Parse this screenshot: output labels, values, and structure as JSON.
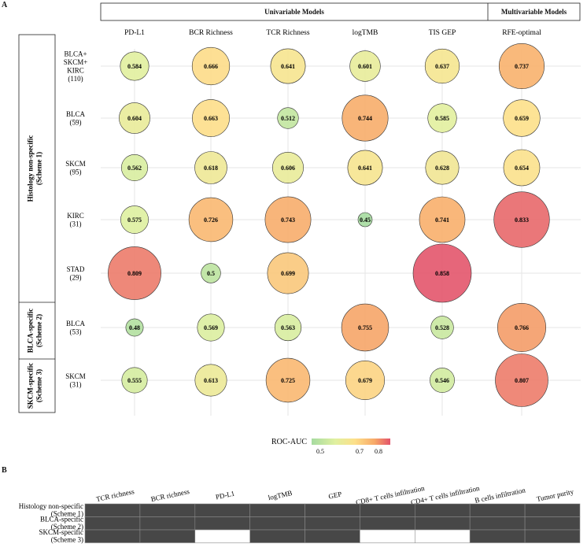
{
  "panel_a": {
    "letter": "A"
  },
  "panel_b": {
    "letter": "B"
  },
  "headers": {
    "univariable": "Univariable Models",
    "multivariable": "Multivariable Models"
  },
  "legend": {
    "title": "ROC-AUC",
    "ticks": [
      "0.5",
      "0.7",
      "0.8"
    ]
  },
  "colors": {
    "low": "#a6dba0",
    "mid_low": "#e0f0a0",
    "mid": "#fde08a",
    "mid_high": "#f7a968",
    "high": "#e3536b",
    "heat_filled": "#474747",
    "heat_empty": "#ffffff",
    "grid": "#e6e6e6"
  },
  "chart_data": [
    {
      "type": "scatter",
      "subtype": "bubble",
      "columns": [
        "PD-L1",
        "BCR Richness",
        "TCR Richness",
        "logTMB",
        "TIS GEP",
        "RFE-optimal"
      ],
      "rows": [
        {
          "label": [
            "BLCA+",
            "SKCM+",
            "KIRC",
            "(110)"
          ],
          "values": [
            0.584,
            0.666,
            0.641,
            0.601,
            0.637,
            0.737
          ]
        },
        {
          "label": [
            "BLCA",
            "(59)"
          ],
          "values": [
            0.604,
            0.663,
            0.512,
            0.744,
            0.585,
            0.659
          ]
        },
        {
          "label": [
            "SKCM",
            "(95)"
          ],
          "values": [
            0.562,
            0.618,
            0.606,
            0.641,
            0.628,
            0.654
          ]
        },
        {
          "label": [
            "KIRC",
            "(31)"
          ],
          "values": [
            0.575,
            0.726,
            0.743,
            0.45,
            0.741,
            0.833
          ]
        },
        {
          "label": [
            "STAD",
            "(29)"
          ],
          "values": [
            0.809,
            0.5,
            0.699,
            null,
            0.858,
            null
          ]
        },
        {
          "label": [
            "BLCA",
            "(53)"
          ],
          "values": [
            0.48,
            0.569,
            0.563,
            0.755,
            0.528,
            0.766
          ]
        },
        {
          "label": [
            "SKCM",
            "(31)"
          ],
          "values": [
            0.555,
            0.613,
            0.725,
            0.679,
            0.546,
            0.807
          ]
        }
      ],
      "row_groups": [
        {
          "label": [
            "Histology non-specific",
            "(Scheme 1)"
          ],
          "rows": [
            0,
            4
          ]
        },
        {
          "label": [
            "BLCA-specific",
            "(Scheme 2)"
          ],
          "rows": [
            5,
            5
          ]
        },
        {
          "label": [
            "SKCM-specific",
            "(Scheme 3)"
          ],
          "rows": [
            6,
            6
          ]
        }
      ],
      "column_groups": [
        {
          "label": "Univariable Models",
          "columns": [
            0,
            4
          ]
        },
        {
          "label": "Multivariable Models",
          "columns": [
            5,
            5
          ]
        }
      ],
      "color_scale": "ROC-AUC",
      "value_labels": [
        "0.584",
        "0.666",
        "0.641",
        "0.601",
        "0.637",
        "0.737",
        "0.604",
        "0.663",
        "0.512",
        "0.744",
        "0.585",
        "0.659",
        "0.562",
        "0.618",
        "0.606",
        "0.641",
        "0.628",
        "0.654",
        "0.575",
        "0.726",
        "0.743",
        "0.45",
        "0.741",
        "0.833",
        "0.809",
        "0.5",
        "0.699",
        "",
        "0.858",
        "",
        "0.48",
        "0.569",
        "0.563",
        "0.755",
        "0.528",
        "0.766",
        "0.555",
        "0.613",
        "0.725",
        "0.679",
        "0.546",
        "0.807"
      ]
    },
    {
      "type": "heatmap",
      "columns": [
        "TCR richness",
        "BCR richness",
        "PD-L1",
        "logTMB",
        "GEP",
        "CD8+ T cells infiltration",
        "CD4+ T cells infiltration",
        "B cells infiltration",
        "Tumor purity"
      ],
      "rows": [
        {
          "label": [
            "Histology non-specific",
            "(Scheme 1)"
          ],
          "selected": [
            1,
            1,
            1,
            1,
            1,
            1,
            1,
            1,
            1
          ]
        },
        {
          "label": [
            "BLCA-specific",
            "(Scheme 2)"
          ],
          "selected": [
            1,
            1,
            1,
            1,
            1,
            1,
            1,
            1,
            1
          ]
        },
        {
          "label": [
            "SKCM-specific",
            "(Scheme 3)"
          ],
          "selected": [
            1,
            1,
            0,
            1,
            1,
            0,
            0,
            1,
            1
          ]
        }
      ]
    }
  ]
}
